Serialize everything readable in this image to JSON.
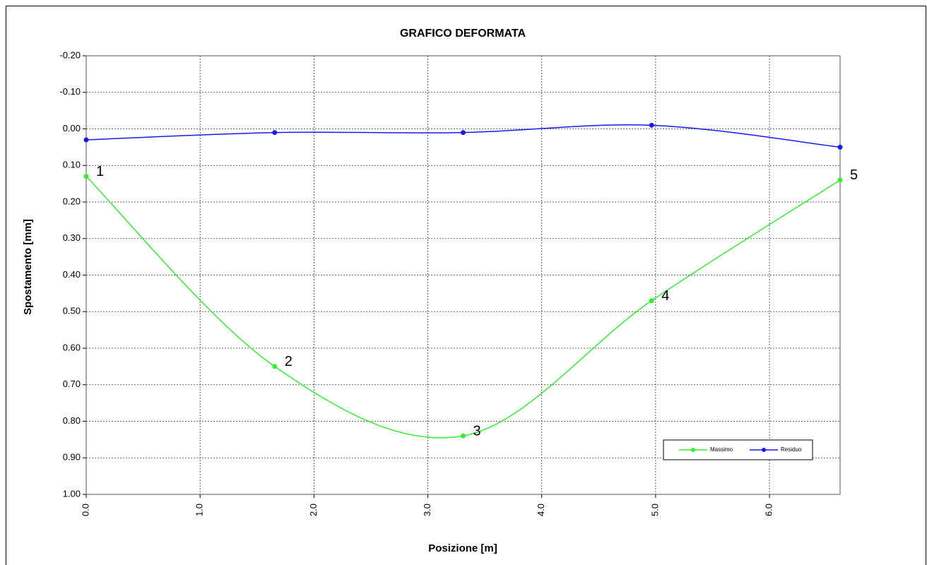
{
  "chart_data": {
    "type": "line",
    "title": "GRAFICO DEFORMATA",
    "x_label": "Posizione [m]",
    "y_label": "Spostamento [mm]",
    "x": [
      0,
      1.655,
      3.31,
      4.965,
      6.62
    ],
    "series": [
      {
        "name": "Massimo",
        "color": "#33ee33",
        "values": [
          0.13,
          0.65,
          0.84,
          0.47,
          0.14
        ],
        "point_labels": [
          "1",
          "2",
          "3",
          "4",
          "5"
        ]
      },
      {
        "name": "Residuo",
        "color": "#1a1aee",
        "values": [
          0.03,
          0.01,
          0.01,
          -0.01,
          0.05
        ]
      }
    ],
    "xlim": [
      0,
      6.62
    ],
    "xticks": [
      {
        "value": 0,
        "label": "0.0"
      },
      {
        "value": 1,
        "label": "1.0"
      },
      {
        "value": 2,
        "label": "2.0"
      },
      {
        "value": 3,
        "label": "3.0"
      },
      {
        "value": 4,
        "label": "4.0"
      },
      {
        "value": 5,
        "label": "5.0"
      },
      {
        "value": 6,
        "label": "6.0"
      }
    ],
    "ylim": [
      -0.2,
      1.0
    ],
    "y_reversed": true,
    "yticks": [
      {
        "value": -0.2,
        "label": "-0.20"
      },
      {
        "value": -0.1,
        "label": "-0.10"
      },
      {
        "value": 0,
        "label": "0.00"
      },
      {
        "value": 0.1,
        "label": "0.10"
      },
      {
        "value": 0.2,
        "label": "0.20"
      },
      {
        "value": 0.3,
        "label": "0.30"
      },
      {
        "value": 0.4,
        "label": "0.40"
      },
      {
        "value": 0.5,
        "label": "0.50"
      },
      {
        "value": 0.6,
        "label": "0.60"
      },
      {
        "value": 0.7,
        "label": "0.70"
      },
      {
        "value": 0.8,
        "label": "0.80"
      },
      {
        "value": 0.9,
        "label": "0.90"
      },
      {
        "value": 1.0,
        "label": "1.00"
      }
    ],
    "grid": true,
    "smooth": true,
    "legend": "lower-right"
  }
}
